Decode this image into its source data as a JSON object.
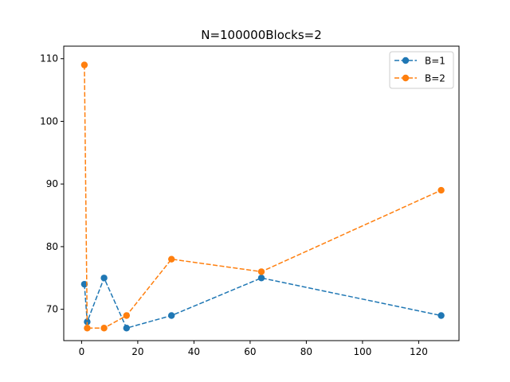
{
  "chart_data": {
    "type": "line",
    "title": "N=100000Blocks=2",
    "xlabel": "",
    "ylabel": "",
    "xlim": [
      -6.35,
      134.35
    ],
    "ylim": [
      65,
      112
    ],
    "xticks": [
      0,
      20,
      40,
      60,
      80,
      100,
      120
    ],
    "yticks": [
      70,
      80,
      90,
      100,
      110
    ],
    "x": [
      1,
      2,
      8,
      16,
      32,
      64,
      128
    ],
    "grid": false,
    "legend_position": "top-right",
    "series": [
      {
        "name": "B=1",
        "color": "#1f77b4",
        "values": [
          74,
          68,
          75,
          67,
          69,
          75,
          69
        ]
      },
      {
        "name": "B=2",
        "color": "#ff7f0e",
        "values": [
          109,
          67,
          67,
          69,
          78,
          76,
          89
        ]
      }
    ]
  }
}
